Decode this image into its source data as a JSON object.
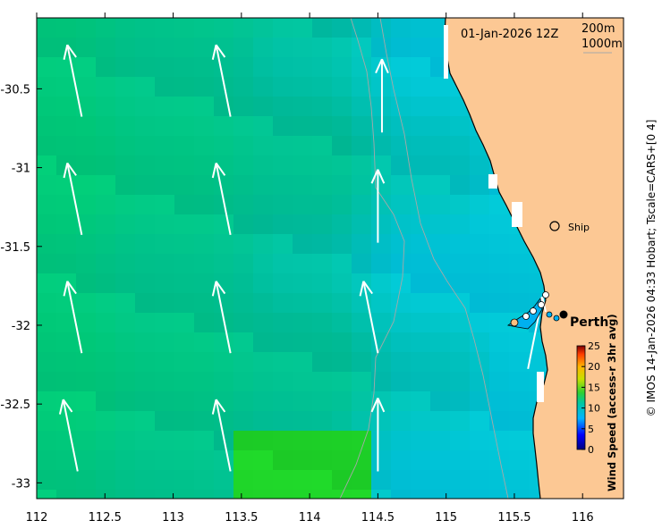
{
  "map": {
    "date_label": "01-Jan-2026 12Z",
    "isobath_labels": [
      "200m",
      "1000m"
    ],
    "places": [
      {
        "name": "Perth",
        "lon": 115.86,
        "lat": -31.95
      },
      {
        "name": "Ship",
        "lon": 115.76,
        "lat": -31.4
      }
    ],
    "colorbar": {
      "label": "Wind Speed (access-r 3hr avg)",
      "ticks": [
        "0",
        "5",
        "10",
        "15",
        "20",
        "25"
      ],
      "min": 0,
      "max": 25
    },
    "credit": "© IMOS 14-Jan-2026 04:33 Hobart; Tscale=CARS+[0 4]"
  },
  "axes": {
    "x_ticks": [
      "112",
      "112.5",
      "113",
      "113.5",
      "114",
      "114.5",
      "115",
      "115.5",
      "116"
    ],
    "y_ticks": [
      "-30.5",
      "-31",
      "-31.5",
      "-32",
      "-32.5",
      "-33"
    ]
  },
  "colors": {
    "land": "#fcc894",
    "arrow": "#ffffff",
    "coast": "#000000",
    "isobath": "#aaaaaa"
  },
  "chart_data": {
    "type": "heatmap",
    "title": "",
    "xlabel": "",
    "ylabel": "",
    "xlim": [
      112,
      116.3
    ],
    "ylim": [
      -33.1,
      -30.05
    ],
    "value_units": "wind speed",
    "wind_vectors": [
      {
        "lon": 112.33,
        "lat": -30.45,
        "direction": "north-northwest"
      },
      {
        "lon": 113.42,
        "lat": -30.45,
        "direction": "north-northwest"
      },
      {
        "lon": 114.53,
        "lat": -30.55,
        "direction": "north"
      },
      {
        "lon": 112.33,
        "lat": -31.2,
        "direction": "north-northwest"
      },
      {
        "lon": 113.42,
        "lat": -31.2,
        "direction": "north-northwest"
      },
      {
        "lon": 114.5,
        "lat": -31.25,
        "direction": "north"
      },
      {
        "lon": 112.33,
        "lat": -31.95,
        "direction": "north-northwest"
      },
      {
        "lon": 113.42,
        "lat": -31.95,
        "direction": "north-northwest"
      },
      {
        "lon": 114.5,
        "lat": -31.95,
        "direction": "north-northwest"
      },
      {
        "lon": 115.6,
        "lat": -32.05,
        "direction": "north-northeast"
      },
      {
        "lon": 112.3,
        "lat": -32.7,
        "direction": "north-northwest"
      },
      {
        "lon": 113.42,
        "lat": -32.7,
        "direction": "north-northwest"
      },
      {
        "lon": 114.5,
        "lat": -32.7,
        "direction": "north"
      }
    ]
  }
}
